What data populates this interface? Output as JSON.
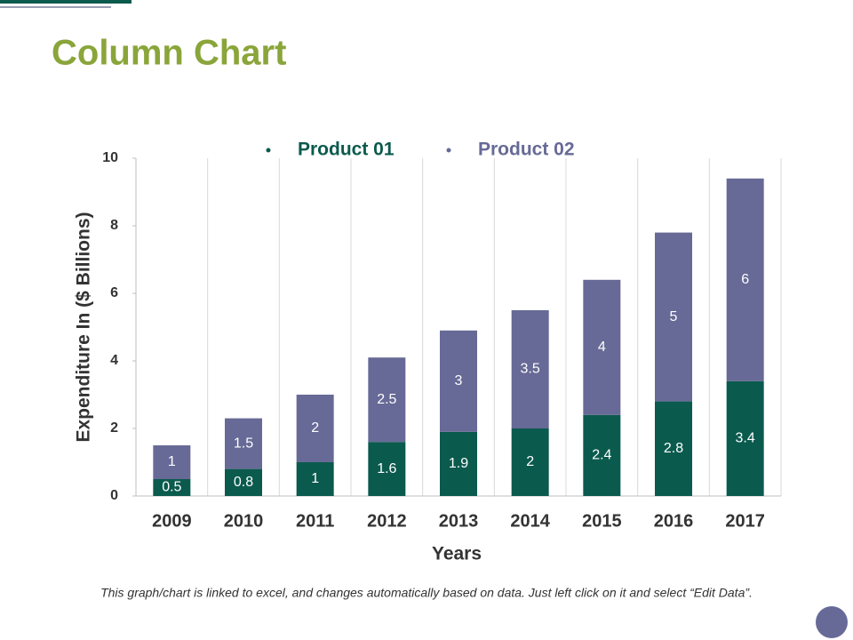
{
  "chart_data": {
    "type": "bar",
    "stacked": true,
    "title": "Column Chart",
    "xlabel": "Years",
    "ylabel": "Expenditure In ($ Billions)",
    "categories": [
      "2009",
      "2010",
      "2011",
      "2012",
      "2013",
      "2014",
      "2015",
      "2016",
      "2017"
    ],
    "series": [
      {
        "name": "Product 01",
        "color": "#0b5a4e",
        "values": [
          0.5,
          0.8,
          1,
          1.6,
          1.9,
          2,
          2.4,
          2.8,
          3.4
        ]
      },
      {
        "name": "Product 02",
        "color": "#676a96",
        "values": [
          1,
          1.5,
          2,
          2.5,
          3,
          3.5,
          4,
          5,
          6
        ]
      }
    ],
    "ylim": [
      0,
      10
    ],
    "yticks": [
      0,
      2,
      4,
      6,
      8,
      10
    ],
    "legend": "top",
    "footnote": "This graph/chart is linked to excel, and changes automatically based on data. Just left click on it and select “Edit Data”."
  }
}
